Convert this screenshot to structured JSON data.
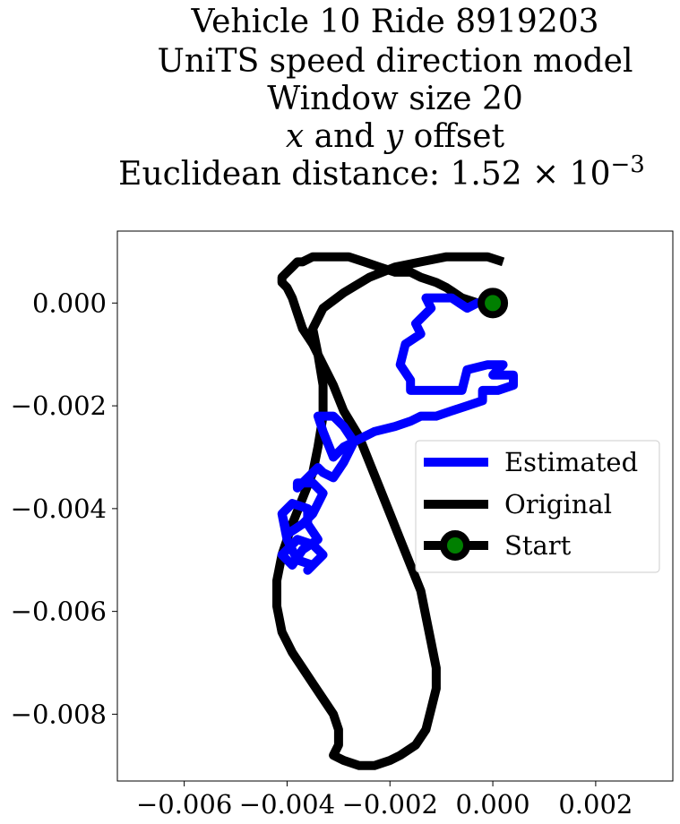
{
  "chart_data": {
    "type": "line",
    "title_lines": [
      "Vehicle 10 Ride 8919203",
      "UniTS speed direction model",
      "Window size 20",
      "x and y offset",
      "Euclidean distance: 1.52 × 10",
      "−3"
    ],
    "xlim": [
      -0.0073,
      0.0035
    ],
    "ylim": [
      -0.0093,
      0.0014
    ],
    "xticks": [
      -0.006,
      -0.004,
      -0.002,
      0.0,
      0.002
    ],
    "xtick_labels": [
      "−0.006",
      "−0.004",
      "−0.002",
      "0.000",
      "0.002"
    ],
    "yticks": [
      0.0,
      -0.002,
      -0.004,
      -0.006,
      -0.008
    ],
    "ytick_labels": [
      "0.000",
      "−0.002",
      "−0.004",
      "−0.006",
      "−0.008"
    ],
    "grid": false,
    "legend_position": "center-right",
    "legend": [
      {
        "label": "Estimated",
        "color": "#0000ff"
      },
      {
        "label": "Original",
        "color": "#000000"
      },
      {
        "label": "Start",
        "color": "#000000",
        "marker_color": "#007f00"
      }
    ],
    "series": [
      {
        "name": "Original",
        "color": "#000000",
        "x": [
          0.0002,
          -0.0001,
          -0.0005,
          -0.0009,
          -0.0014,
          -0.0019,
          -0.0024,
          -0.0029,
          -0.0033,
          -0.0035,
          -0.0034,
          -0.0033,
          -0.0033,
          -0.0034,
          -0.0035,
          -0.0037,
          -0.0039,
          -0.0041,
          -0.0042,
          -0.0042,
          -0.0041,
          -0.0039,
          -0.0037,
          -0.0035,
          -0.0033,
          -0.0031,
          -0.003,
          -0.003,
          -0.0031,
          -0.0029,
          -0.0026,
          -0.0023,
          -0.002,
          -0.0018,
          -0.0015,
          -0.0013,
          -0.0012,
          -0.0011,
          -0.0011,
          -0.0012,
          -0.0013,
          -0.0014,
          -0.0016,
          -0.0018,
          -0.002,
          -0.0022,
          -0.0024,
          -0.0026,
          -0.0029,
          -0.0031,
          -0.0033,
          -0.0035,
          -0.0037,
          -0.0038,
          -0.0039,
          -0.004,
          -0.0041,
          -0.0041,
          -0.004,
          -0.0039,
          -0.0038,
          -0.0037,
          -0.0035,
          -0.0033,
          -0.0031,
          -0.0028,
          -0.0025,
          -0.0022,
          -0.0019,
          -0.0016,
          -0.0014,
          -0.0011,
          -0.0009,
          -0.0006,
          -0.0003,
          0.0
        ],
        "y": [
          0.0008,
          0.0009,
          0.0009,
          0.0009,
          0.0008,
          0.0007,
          0.0005,
          0.0002,
          -0.0001,
          -0.0005,
          -0.001,
          -0.0016,
          -0.0022,
          -0.0028,
          -0.0033,
          -0.0038,
          -0.0043,
          -0.0049,
          -0.0054,
          -0.0059,
          -0.0064,
          -0.0068,
          -0.0071,
          -0.0074,
          -0.0077,
          -0.008,
          -0.0083,
          -0.0086,
          -0.0088,
          -0.0089,
          -0.009,
          -0.009,
          -0.0089,
          -0.0088,
          -0.0086,
          -0.0083,
          -0.0079,
          -0.0075,
          -0.0071,
          -0.0066,
          -0.0061,
          -0.0056,
          -0.0051,
          -0.0046,
          -0.0041,
          -0.0036,
          -0.0031,
          -0.0026,
          -0.0021,
          -0.0016,
          -0.0012,
          -0.0008,
          -0.0005,
          -0.0002,
          0.0001,
          0.0003,
          0.0004,
          0.0005,
          0.0006,
          0.0007,
          0.0008,
          0.0008,
          0.0009,
          0.0009,
          0.0009,
          0.0009,
          0.0008,
          0.0007,
          0.0006,
          0.0006,
          0.0005,
          0.0004,
          0.0003,
          0.0001,
          0.0,
          0.0
        ]
      },
      {
        "name": "Estimated",
        "color": "#0000ff",
        "x": [
          0.0,
          -0.0003,
          -0.0005,
          -0.0008,
          -0.0011,
          -0.0013,
          -0.0012,
          -0.0015,
          -0.0014,
          -0.0017,
          -0.0018,
          -0.0016,
          -0.0016,
          -0.0013,
          -0.0009,
          -0.0006,
          -0.0005,
          -0.0001,
          0.0002,
          0.0,
          0.0003,
          0.0004,
          0.0004,
          0.0001,
          -0.0002,
          -0.0002,
          -0.0005,
          -0.0008,
          -0.0011,
          -0.0014,
          -0.0016,
          -0.0019,
          -0.0023,
          -0.0025,
          -0.0027,
          -0.0029,
          -0.0031,
          -0.0033,
          -0.0034,
          -0.0031,
          -0.0029,
          -0.0027,
          -0.0029,
          -0.0031,
          -0.0033,
          -0.0034,
          -0.0036,
          -0.0038,
          -0.0038,
          -0.0035,
          -0.0033,
          -0.0035,
          -0.0037,
          -0.004,
          -0.0041,
          -0.0039,
          -0.0036,
          -0.0036,
          -0.0034,
          -0.0037,
          -0.0039,
          -0.0041,
          -0.0038,
          -0.0035,
          -0.0033,
          -0.0035,
          -0.0036,
          -0.0035,
          -0.0038,
          -0.004,
          -0.0041
        ],
        "y": [
          0.0,
          0.0,
          -0.0001,
          0.0001,
          0.0001,
          0.0001,
          -0.0001,
          -0.0004,
          -0.0006,
          -0.0008,
          -0.0012,
          -0.0015,
          -0.0017,
          -0.0017,
          -0.0017,
          -0.0017,
          -0.0013,
          -0.0012,
          -0.0012,
          -0.0014,
          -0.0014,
          -0.0014,
          -0.0016,
          -0.0017,
          -0.0017,
          -0.0019,
          -0.002,
          -0.0021,
          -0.0022,
          -0.0022,
          -0.0023,
          -0.0024,
          -0.0025,
          -0.0026,
          -0.0027,
          -0.0028,
          -0.003,
          -0.0025,
          -0.0022,
          -0.0022,
          -0.0024,
          -0.0027,
          -0.0031,
          -0.0034,
          -0.0033,
          -0.0032,
          -0.0034,
          -0.0036,
          -0.0035,
          -0.0035,
          -0.0037,
          -0.0041,
          -0.0043,
          -0.0045,
          -0.0041,
          -0.0039,
          -0.004,
          -0.0043,
          -0.0046,
          -0.0048,
          -0.0051,
          -0.0049,
          -0.0046,
          -0.0047,
          -0.0049,
          -0.0051,
          -0.0052,
          -0.0051,
          -0.005,
          -0.0046,
          -0.0041
        ]
      }
    ],
    "start_point": {
      "x": 0.0,
      "y": 0.0,
      "label": "Start"
    }
  }
}
